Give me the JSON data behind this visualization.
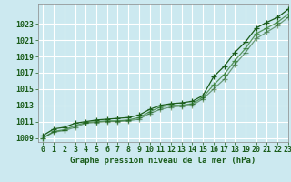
{
  "xlabel": "Graphe pression niveau de la mer (hPa)",
  "ylim": [
    1008.5,
    1025.5
  ],
  "xlim": [
    -0.5,
    23
  ],
  "yticks": [
    1009,
    1011,
    1013,
    1015,
    1017,
    1019,
    1021,
    1023
  ],
  "xticks": [
    0,
    1,
    2,
    3,
    4,
    5,
    6,
    7,
    8,
    9,
    10,
    11,
    12,
    13,
    14,
    15,
    16,
    17,
    18,
    19,
    20,
    21,
    22,
    23
  ],
  "background_color": "#cce9f0",
  "grid_color": "#ffffff",
  "line_color_dark": "#1a5c1a",
  "line_color_mid": "#2d7a2d",
  "series": [
    [
      1009.3,
      1010.1,
      1010.3,
      1010.8,
      1011.0,
      1011.2,
      1011.3,
      1011.4,
      1011.5,
      1011.8,
      1012.5,
      1013.0,
      1013.2,
      1013.3,
      1013.5,
      1014.2,
      1016.5,
      1017.8,
      1019.5,
      1020.8,
      1022.5,
      1023.2,
      1023.8,
      1024.8
    ],
    [
      1009.0,
      1009.8,
      1010.0,
      1010.5,
      1010.9,
      1011.0,
      1011.1,
      1011.1,
      1011.2,
      1011.5,
      1012.2,
      1012.8,
      1013.0,
      1013.0,
      1013.2,
      1014.0,
      1015.5,
      1016.8,
      1018.5,
      1020.0,
      1021.8,
      1022.5,
      1023.2,
      1024.2
    ],
    [
      1009.0,
      1009.7,
      1009.9,
      1010.3,
      1010.8,
      1010.9,
      1011.0,
      1011.0,
      1011.1,
      1011.3,
      1012.0,
      1012.5,
      1012.8,
      1012.9,
      1013.0,
      1013.8,
      1015.0,
      1016.2,
      1018.0,
      1019.5,
      1021.2,
      1022.0,
      1022.8,
      1023.8
    ]
  ],
  "marker": "+",
  "markersize": 4,
  "linewidth": 0.9,
  "text_color": "#1a5c1a",
  "label_fontsize": 6.5,
  "tick_fontsize": 6.0
}
